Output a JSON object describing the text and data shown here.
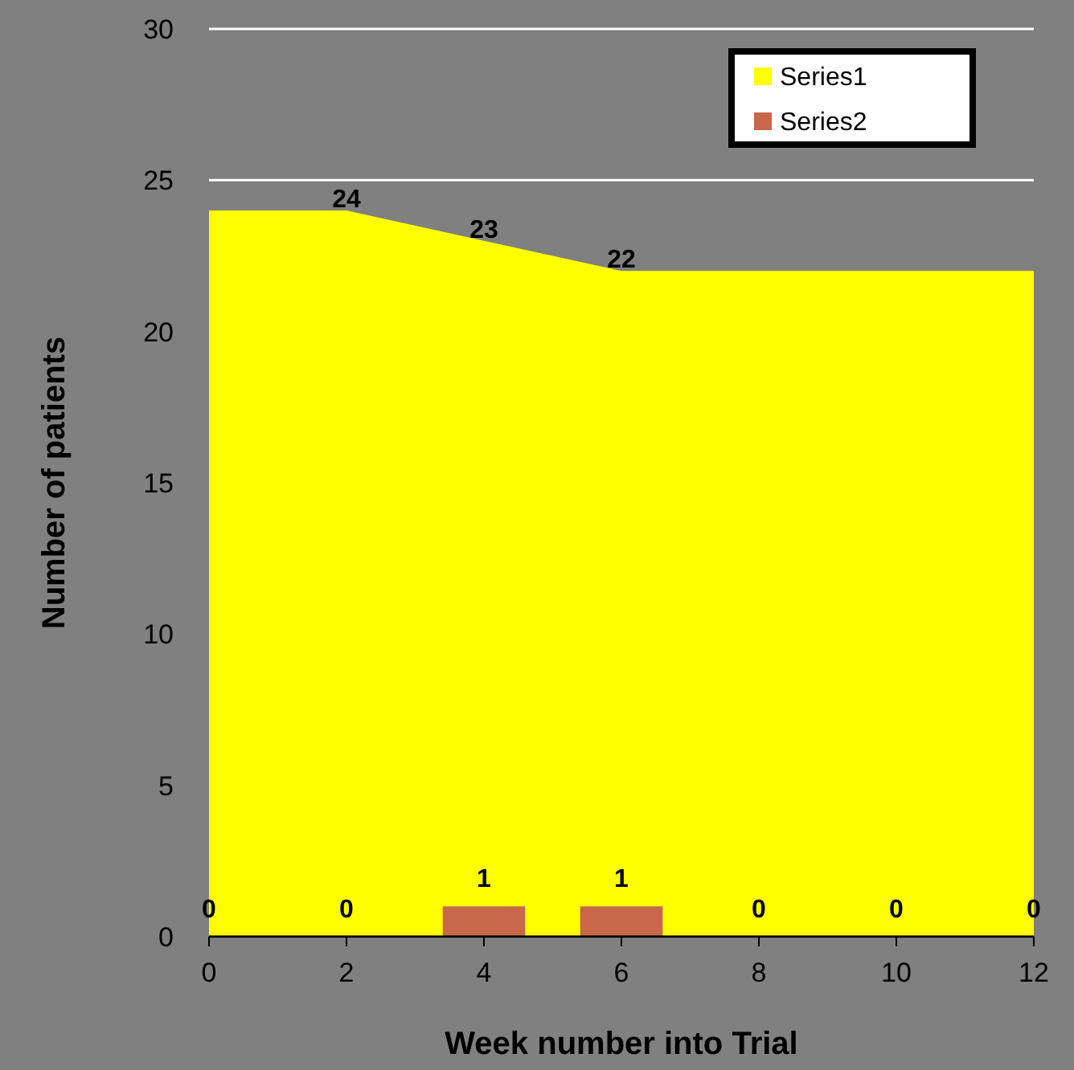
{
  "chart_data": {
    "type": "area",
    "xlabel": "Week number into Trial",
    "ylabel": "Number of patients",
    "x": [
      0,
      2,
      4,
      6,
      8,
      10,
      12
    ],
    "xlim": [
      0,
      12
    ],
    "xticks": [
      0,
      2,
      4,
      6,
      8,
      10,
      12
    ],
    "ylim": [
      0,
      30
    ],
    "yticks": [
      0,
      5,
      10,
      15,
      20,
      25,
      30
    ],
    "grid": "y",
    "legend": "top right",
    "series": [
      {
        "name": "Series1",
        "color": "#ffff00",
        "values": [
          24,
          24,
          23,
          22,
          22,
          22,
          22
        ],
        "value_labels": [
          null,
          "24",
          "23",
          "22",
          null,
          null,
          null
        ]
      },
      {
        "name": "Series2",
        "type": "bar",
        "color": "#c8674a",
        "values": [
          0,
          0,
          1,
          1,
          0,
          0,
          0
        ],
        "value_labels": [
          "0",
          "0",
          "1",
          "1",
          "0",
          "0",
          "0"
        ]
      }
    ]
  }
}
